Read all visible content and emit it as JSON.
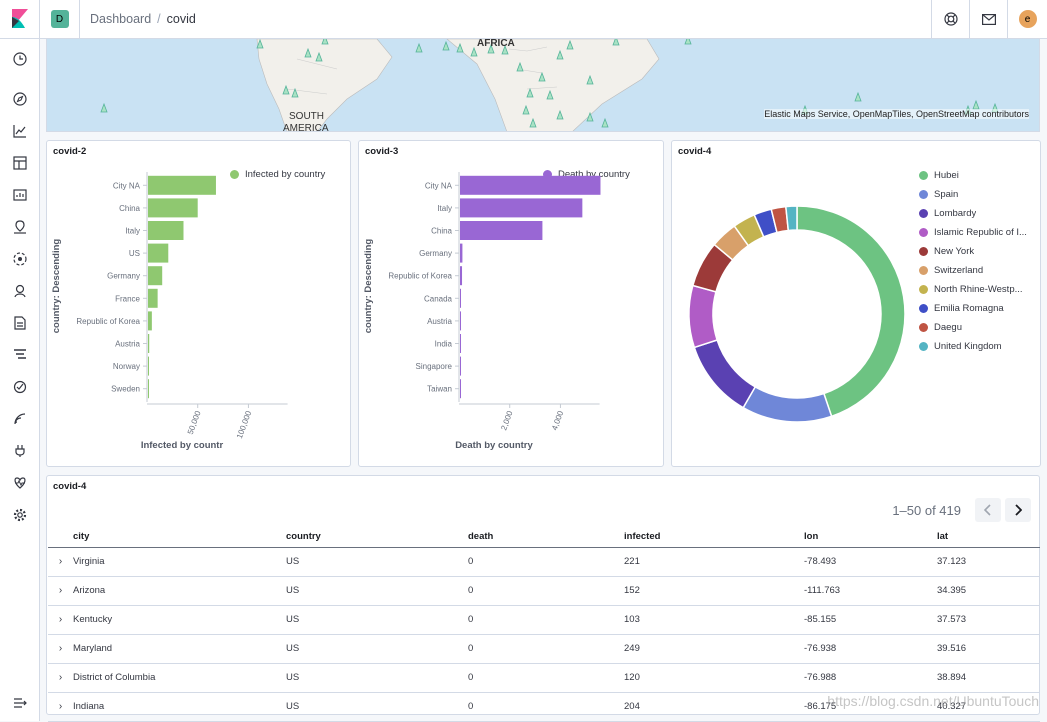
{
  "header": {
    "space_initial": "D",
    "breadcrumb_parent": "Dashboard",
    "breadcrumb_separator": "/",
    "breadcrumb_current": "covid",
    "user_initial": "e"
  },
  "map": {
    "labels": [
      "AFRICA",
      "SOUTH",
      "AMERICA"
    ],
    "attribution": "Elastic Maps Service, OpenMapTiles, OpenStreetMap contributors"
  },
  "panels": {
    "infected": {
      "title": "covid-2",
      "legend": "Infected by country",
      "axis_title": "country: Descending",
      "xlabel": "Infected by countr",
      "color": "#8fc870"
    },
    "death": {
      "title": "covid-3",
      "legend": "Death by country",
      "axis_title": "country: Descending",
      "xlabel": "Death by country",
      "color": "#9967d4"
    },
    "donut": {
      "title": "covid-4"
    },
    "table": {
      "title": "covid-4",
      "pager_text": "1–50 of 419",
      "columns": [
        "city",
        "country",
        "death",
        "infected",
        "lon",
        "lat"
      ],
      "rows": [
        {
          "city": "Virginia",
          "country": "US",
          "death": "0",
          "infected": "221",
          "lon": "-78.493",
          "lat": "37.123"
        },
        {
          "city": "Arizona",
          "country": "US",
          "death": "0",
          "infected": "152",
          "lon": "-111.763",
          "lat": "34.395"
        },
        {
          "city": "Kentucky",
          "country": "US",
          "death": "0",
          "infected": "103",
          "lon": "-85.155",
          "lat": "37.573"
        },
        {
          "city": "Maryland",
          "country": "US",
          "death": "0",
          "infected": "249",
          "lon": "-76.938",
          "lat": "39.516"
        },
        {
          "city": "District of Columbia",
          "country": "US",
          "death": "0",
          "infected": "120",
          "lon": "-76.988",
          "lat": "38.894"
        },
        {
          "city": "Indiana",
          "country": "US",
          "death": "0",
          "infected": "204",
          "lon": "-86.175",
          "lat": "40.327"
        }
      ]
    }
  },
  "watermark": "https://blog.csdn.net/UbuntuTouch",
  "chart_data": [
    {
      "type": "bar",
      "orientation": "horizontal",
      "title": "covid-2",
      "ylabel": "country: Descending",
      "xlabel": "Infected by countr",
      "legend": "Infected by country",
      "categories": [
        "City NA",
        "China",
        "Italy",
        "US",
        "Germany",
        "France",
        "Republic of Korea",
        "Austria",
        "Norway",
        "Sweden"
      ],
      "values": [
        67000,
        49000,
        35000,
        20000,
        14000,
        9500,
        3800,
        1200,
        900,
        700
      ],
      "xticks": [
        "50,000",
        "100,000"
      ],
      "xtick_values": [
        50000,
        100000
      ],
      "xlim": [
        0,
        140000
      ]
    },
    {
      "type": "bar",
      "orientation": "horizontal",
      "title": "covid-3",
      "ylabel": "country: Descending",
      "xlabel": "Death by country",
      "legend": "Death by country",
      "categories": [
        "City NA",
        "Italy",
        "China",
        "Germany",
        "Republic of Korea",
        "Canada",
        "Austria",
        "India",
        "Singapore",
        "Taiwan"
      ],
      "values": [
        5540,
        4825,
        3250,
        95,
        80,
        15,
        10,
        5,
        2,
        1
      ],
      "xticks": [
        "2,000",
        "4,000"
      ],
      "xtick_values": [
        2000,
        4000
      ],
      "xlim": [
        0,
        5600
      ]
    },
    {
      "type": "pie",
      "donut": true,
      "title": "covid-4",
      "labels": [
        "Hubei",
        "Spain",
        "Lombardy",
        "Islamic Republic of I...",
        "New York",
        "Switzerland",
        "North Rhine-Westp...",
        "Emilia Romagna",
        "Daegu",
        "United Kingdom"
      ],
      "values": [
        67800,
        20400,
        17700,
        14000,
        10400,
        6100,
        5100,
        4000,
        3300,
        2500
      ],
      "colors": [
        "#6dc382",
        "#6f87d8",
        "#5a41b2",
        "#b05cc6",
        "#9c3a39",
        "#d8a06a",
        "#c3b34f",
        "#3f4fc7",
        "#bf5443",
        "#54b4c3"
      ]
    }
  ]
}
